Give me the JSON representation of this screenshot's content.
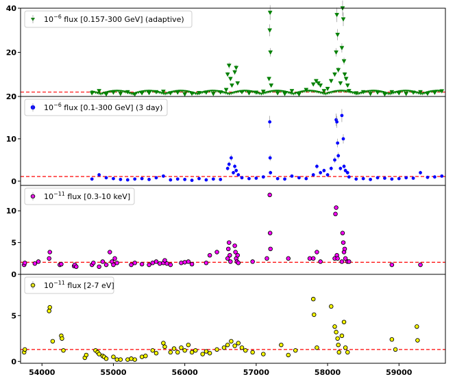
{
  "chart_data": [
    {
      "type": "scatter",
      "legend": {
        "prefix": "10",
        "exponent": "−6",
        "label": " flux [0.157-300 GeV] (adaptive)",
        "placement": "top-left"
      },
      "color": "#008000",
      "marker": "triangle-down",
      "ylim": [
        0,
        40
      ],
      "yticks": [
        0,
        20,
        40
      ],
      "baseline": 2.0,
      "series": [
        {
          "values_note": "dense",
          "x": [
            54700,
            54800,
            54900,
            55000,
            55100,
            55200,
            55300,
            55400,
            55500,
            55600,
            55700,
            55800,
            55900,
            56000,
            56100,
            56200,
            56300,
            56400,
            56500,
            56580,
            56600,
            56620,
            56640,
            56660,
            56700,
            56720,
            56740,
            56800,
            56900,
            57000,
            57100,
            57180,
            57190,
            57195,
            57200,
            57210,
            57300,
            57400,
            57500,
            57600,
            57700,
            57800,
            57840,
            57870,
            57900,
            57950,
            58000,
            58050,
            58100,
            58120,
            58130,
            58140,
            58150,
            58180,
            58200,
            58210,
            58220,
            58230,
            58240,
            58260,
            58280,
            58300,
            58400,
            58500,
            58600,
            58700,
            58800,
            58900,
            59000,
            59100,
            59200,
            59300,
            59400,
            59500,
            59600
          ],
          "y": [
            1.5,
            2.5,
            1.0,
            1.8,
            1.2,
            2.0,
            1.0,
            1.5,
            1.6,
            2.0,
            2.2,
            1.5,
            1.8,
            1.0,
            1.3,
            1.6,
            1.8,
            1.2,
            1.9,
            3.0,
            10.0,
            14.0,
            8.0,
            5.0,
            11.0,
            13.0,
            6.0,
            2.0,
            1.5,
            1.8,
            2.2,
            8.0,
            30.0,
            38.0,
            20.0,
            5.0,
            1.5,
            1.2,
            2.5,
            1.0,
            3.0,
            5.5,
            7.0,
            6.0,
            5.0,
            2.5,
            3.5,
            7.0,
            10.0,
            20.0,
            37.0,
            28.0,
            12.0,
            6.0,
            22.0,
            40.0,
            35.0,
            16.0,
            10.0,
            8.0,
            5.0,
            2.5,
            1.5,
            2.0,
            1.2,
            1.8,
            1.0,
            2.0,
            1.5,
            1.2,
            1.8,
            2.0,
            1.3,
            1.7,
            2.4
          ]
        }
      ]
    },
    {
      "type": "scatter",
      "legend": {
        "prefix": "10",
        "exponent": "−6",
        "label": " flux [0.1-300 GeV] (3 day)",
        "placement": "top-left"
      },
      "color": "#0000ff",
      "marker": "circle",
      "ylim": [
        -1,
        20
      ],
      "yticks": [
        0,
        10,
        20
      ],
      "baseline": 1.1,
      "series": [
        {
          "x": [
            54700,
            54800,
            54900,
            55000,
            55100,
            55200,
            55300,
            55400,
            55500,
            55600,
            55700,
            55800,
            55900,
            56000,
            56100,
            56200,
            56300,
            56400,
            56500,
            56600,
            56620,
            56650,
            56680,
            56700,
            56720,
            56750,
            56800,
            56900,
            57000,
            57100,
            57190,
            57195,
            57200,
            57300,
            57400,
            57500,
            57600,
            57700,
            57800,
            57850,
            57900,
            57950,
            58000,
            58050,
            58100,
            58120,
            58130,
            58140,
            58150,
            58180,
            58200,
            58220,
            58230,
            58250,
            58280,
            58300,
            58400,
            58500,
            58600,
            58700,
            58800,
            58900,
            59000,
            59100,
            59200,
            59300,
            59400,
            59500,
            59600
          ],
          "y": [
            0.5,
            1.5,
            0.8,
            0.6,
            0.4,
            0.3,
            0.5,
            0.6,
            0.4,
            0.8,
            1.2,
            0.3,
            0.5,
            0.4,
            0.2,
            0.6,
            0.3,
            0.5,
            0.4,
            3.0,
            4.0,
            5.5,
            2.0,
            3.5,
            2.5,
            1.5,
            0.8,
            0.6,
            0.7,
            1.0,
            14.0,
            5.5,
            2.0,
            0.6,
            0.5,
            1.2,
            0.8,
            0.6,
            1.5,
            3.5,
            2.0,
            2.5,
            1.5,
            3.0,
            5.0,
            14.5,
            14.0,
            9.0,
            6.0,
            3.0,
            15.5,
            10.0,
            3.5,
            2.5,
            2.0,
            1.0,
            0.5,
            0.6,
            0.4,
            0.8,
            0.7,
            0.5,
            0.6,
            0.8,
            0.7,
            2.0,
            0.9,
            1.0,
            1.2
          ]
        }
      ]
    },
    {
      "type": "scatter",
      "legend": {
        "prefix": "10",
        "exponent": "−11",
        "label": " flux [0.3-10 keV]",
        "placement": "top-left"
      },
      "color": "#ff00ff",
      "marker": "circle",
      "ylim": [
        0,
        14
      ],
      "yticks": [
        0,
        5,
        10
      ],
      "baseline": 1.9,
      "series": [
        {
          "x": [
            53750,
            53760,
            53900,
            53950,
            54100,
            54110,
            54250,
            54270,
            54450,
            54460,
            54480,
            54700,
            54720,
            54800,
            54850,
            54900,
            54950,
            54980,
            55000,
            55020,
            55050,
            55250,
            55300,
            55400,
            55500,
            55550,
            55600,
            55650,
            55700,
            55720,
            55750,
            55800,
            55950,
            56000,
            56050,
            56100,
            56300,
            56350,
            56450,
            56600,
            56610,
            56620,
            56630,
            56640,
            56700,
            56710,
            56720,
            56730,
            56740,
            56750,
            56950,
            57150,
            57190,
            57195,
            57200,
            57450,
            57750,
            57800,
            57850,
            57900,
            58100,
            58110,
            58120,
            58130,
            58140,
            58200,
            58210,
            58220,
            58230,
            58240,
            58250,
            58280,
            58300,
            58900,
            59300
          ],
          "y": [
            1.5,
            1.8,
            1.7,
            2.0,
            2.5,
            3.5,
            1.5,
            1.6,
            1.3,
            1.5,
            1.2,
            1.5,
            1.8,
            1.2,
            2.0,
            1.5,
            3.5,
            2.0,
            1.5,
            2.5,
            1.8,
            1.5,
            1.8,
            1.6,
            1.5,
            1.8,
            2.0,
            1.7,
            1.8,
            2.2,
            1.7,
            1.5,
            1.8,
            1.9,
            2.0,
            1.6,
            1.8,
            3.0,
            3.5,
            2.5,
            4.0,
            5.0,
            3.0,
            2.0,
            4.5,
            3.5,
            2.5,
            2.0,
            3.0,
            1.8,
            2.0,
            2.5,
            12.5,
            6.5,
            4.0,
            2.5,
            2.5,
            2.5,
            3.5,
            2.0,
            2.5,
            9.5,
            10.5,
            3.0,
            2.5,
            2.0,
            6.5,
            5.0,
            3.5,
            4.0,
            2.5,
            2.0,
            2.0,
            1.5,
            1.5
          ]
        }
      ]
    },
    {
      "type": "scatter",
      "legend": {
        "prefix": "10",
        "exponent": "−11",
        "label": " flux [2-7 eV]",
        "placement": "top-left"
      },
      "color": "#ffff00",
      "marker": "circle",
      "ylim": [
        -0.2,
        9.5
      ],
      "yticks": [
        0,
        5
      ],
      "baseline": 1.3,
      "series": [
        {
          "x": [
            53750,
            53760,
            54100,
            54110,
            54150,
            54270,
            54280,
            54300,
            54600,
            54620,
            54750,
            54780,
            54800,
            54850,
            54870,
            54900,
            55000,
            55050,
            55100,
            55200,
            55250,
            55300,
            55400,
            55450,
            55550,
            55600,
            55700,
            55720,
            55800,
            55850,
            55900,
            55950,
            56000,
            56050,
            56100,
            56150,
            56250,
            56300,
            56350,
            56450,
            56550,
            56600,
            56650,
            56700,
            56750,
            56800,
            56850,
            56950,
            57100,
            57350,
            57450,
            57550,
            57800,
            57810,
            57850,
            58050,
            58100,
            58120,
            58140,
            58150,
            58160,
            58200,
            58230,
            58250,
            58280,
            58900,
            58950,
            59250,
            59260
          ],
          "y": [
            1.0,
            1.3,
            5.5,
            5.9,
            2.2,
            2.8,
            2.5,
            1.2,
            0.4,
            0.7,
            1.2,
            1.0,
            0.8,
            0.6,
            0.5,
            0.3,
            0.5,
            0.2,
            0.2,
            0.2,
            0.3,
            0.2,
            0.5,
            0.6,
            1.2,
            0.9,
            2.0,
            1.6,
            1.0,
            1.4,
            1.0,
            1.5,
            1.2,
            1.8,
            1.0,
            1.2,
            0.8,
            1.1,
            0.9,
            1.3,
            1.5,
            1.8,
            2.2,
            1.7,
            2.0,
            1.5,
            1.2,
            1.0,
            0.8,
            1.8,
            0.7,
            1.2,
            6.8,
            5.1,
            1.5,
            6.0,
            3.8,
            3.2,
            2.5,
            1.8,
            1.0,
            2.8,
            4.3,
            1.5,
            1.0,
            2.4,
            1.3,
            3.8,
            2.3
          ]
        }
      ]
    }
  ],
  "x_axis": {
    "xlim": [
      53700,
      59650
    ],
    "ticks": [
      54000,
      55000,
      56000,
      57000,
      58000,
      59000
    ],
    "tick_labels": [
      "54000",
      "55000",
      "56000",
      "57000",
      "58000",
      "59000"
    ]
  },
  "colors": {
    "baseline": "#ff0000",
    "errorbar": "#808080"
  }
}
